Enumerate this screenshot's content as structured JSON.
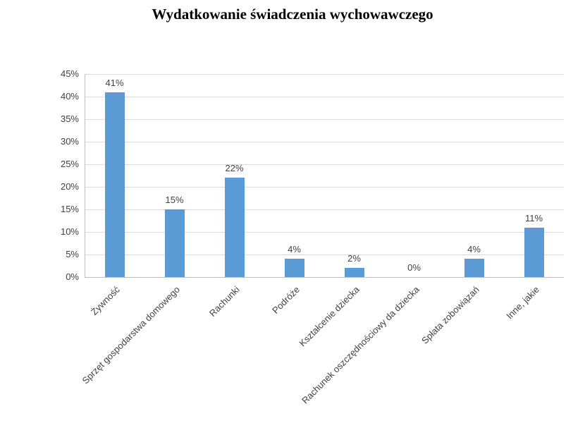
{
  "title": "Wydatkowanie świadczenia wychowawczego",
  "chart_data": {
    "type": "bar",
    "title": "Wydatkowanie świadczenia wychowawczego",
    "categories": [
      "Żywność",
      "Sprzęt gospodarstwa domowego",
      "Rachunki",
      "Podróże",
      "Kształcenie dziecka",
      "Rachunek oszczędnościowy da dziecka",
      "Spłata zobowiązań",
      "Inne, jakie"
    ],
    "values": [
      41,
      15,
      22,
      4,
      2,
      0,
      4,
      11
    ],
    "data_labels": [
      "41%",
      "15%",
      "22%",
      "4%",
      "2%",
      "0%",
      "4%",
      "11%"
    ],
    "xlabel": "",
    "ylabel": "",
    "ylim": [
      0,
      45
    ],
    "ytick_step": 5,
    "ytick_suffix": "%",
    "ytick_labels": [
      "0%",
      "5%",
      "10%",
      "15%",
      "20%",
      "25%",
      "30%",
      "35%",
      "40%",
      "45%"
    ],
    "grid": true,
    "legend": false,
    "colors": {
      "bar": "#5B9BD5",
      "gridline": "#D9D9D9",
      "axis_line": "#BFBFBF",
      "axis_text": "#404040",
      "title_text": "#000000"
    }
  }
}
